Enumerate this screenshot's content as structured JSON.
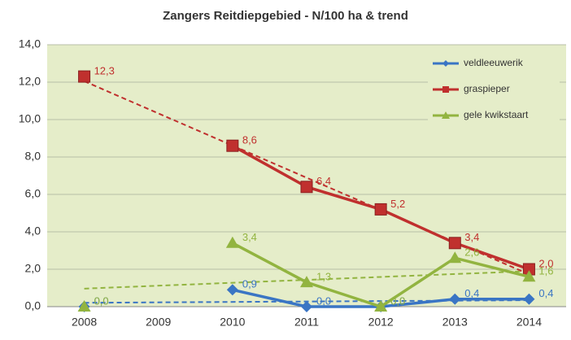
{
  "chart_data": {
    "type": "line",
    "title": "Zangers Reitdiepgebied - N/100 ha & trend",
    "categories": [
      "2008",
      "2009",
      "2010",
      "2011",
      "2012",
      "2013",
      "2014"
    ],
    "series": [
      {
        "name": "veldleeuwerik",
        "color": "#3a75c4",
        "marker": "diamond",
        "values": [
          0.0,
          null,
          0.9,
          0.0,
          0.0,
          0.4,
          0.4
        ],
        "value_labels": [
          "0,0",
          null,
          "0,9",
          "0,0",
          "0,0",
          "0,4",
          "0,4"
        ]
      },
      {
        "name": "graspieper",
        "color": "#c0302e",
        "marker": "square",
        "values": [
          12.3,
          null,
          8.6,
          6.4,
          5.2,
          3.4,
          2.0
        ],
        "value_labels": [
          "12,3",
          null,
          "8,6",
          "6,4",
          "5,2",
          "3,4",
          "2,0"
        ]
      },
      {
        "name": "gele kwikstaart",
        "color": "#92b440",
        "marker": "triangle",
        "values": [
          0.0,
          null,
          3.4,
          1.3,
          0.0,
          2.6,
          1.6
        ],
        "value_labels": [
          "0,0",
          null,
          "3,4",
          "1,3",
          "0,0",
          "2,6",
          "1,6"
        ]
      }
    ],
    "ylim": [
      0,
      14
    ],
    "yticks": [
      {
        "value": 0,
        "label": "0,0"
      },
      {
        "value": 2,
        "label": "2,0"
      },
      {
        "value": 4,
        "label": "4,0"
      },
      {
        "value": 6,
        "label": "6,0"
      },
      {
        "value": 8,
        "label": "8,0"
      },
      {
        "value": 10,
        "label": "10,0"
      },
      {
        "value": 12,
        "label": "12,0"
      },
      {
        "value": 14,
        "label": "14,0"
      }
    ],
    "grid": true,
    "trendline": true,
    "legend": "top-right"
  }
}
